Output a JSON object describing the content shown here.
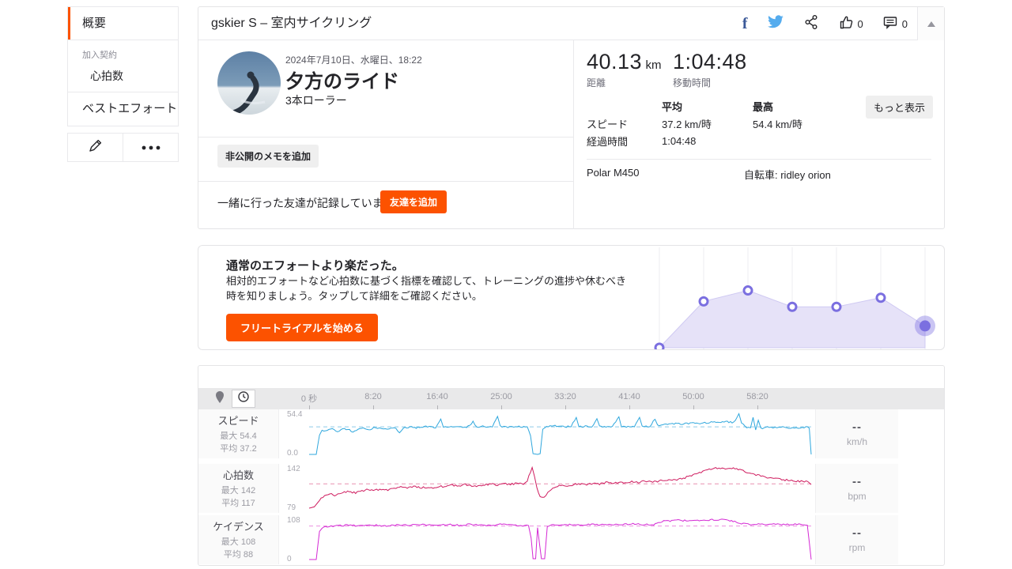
{
  "sidebar": {
    "overview": "概要",
    "subscription_label": "加入契約",
    "subscription_item": "心拍数",
    "best_efforts": "ベストエフォート"
  },
  "header": {
    "title": "gskier S – 室内サイクリング",
    "kudos_count": "0",
    "comments_count": "0"
  },
  "activity": {
    "date": "2024年7月10日、水曜日、18:22",
    "title": "夕方のライド",
    "subtitle": "3本ローラー",
    "private_note_button": "非公開のメモを追加",
    "friend_prompt": "一緒に行った友達が記録していませんか？",
    "add_friend_button": "友達を追加"
  },
  "stats": {
    "distance_value": "40.13",
    "distance_unit": "km",
    "distance_label": "距離",
    "moving_time_value": "1:04:48",
    "moving_time_label": "移動時間",
    "col_avg": "平均",
    "col_max": "最高",
    "row_speed_label": "スピード",
    "row_speed_avg": "37.2 km/時",
    "row_speed_max": "54.4 km/時",
    "row_elapsed_label": "経過時間",
    "row_elapsed_avg": "1:04:48",
    "more_button": "もっと表示",
    "device": "Polar M450",
    "bike": "自転車: ridley orion"
  },
  "promo": {
    "heading": "通常のエフォートより楽だった。",
    "body": "相対的エフォートなど心拍数に基づく指標を確認して、トレーニングの進捗や休むべき時を知りましょう。タップして詳細をご確認ください。",
    "cta": "フリートライアルを始める"
  },
  "charts": {
    "x_ticks": [
      "0 秒",
      "8:20",
      "16:40",
      "25:00",
      "33:20",
      "41:40",
      "50:00",
      "58:20"
    ],
    "rows": [
      {
        "name": "スピード",
        "max_label": "最大 54.4",
        "avg_label": "平均 37.2",
        "y_top": "54.4",
        "y_bottom": "0.0",
        "value": "--",
        "unit": "km/h"
      },
      {
        "name": "心拍数",
        "max_label": "最大 142",
        "avg_label": "平均 117",
        "y_top": "142",
        "y_bottom": "79",
        "value": "--",
        "unit": "bpm"
      },
      {
        "name": "ケイデンス",
        "max_label": "最大 108",
        "avg_label": "平均 88",
        "y_top": "108",
        "y_bottom": "0",
        "value": "--",
        "unit": "rpm"
      }
    ]
  },
  "colors": {
    "accent": "#fc5200",
    "facebook": "#3b5998",
    "twitter": "#55acee",
    "speed": "#2fa7dd",
    "speed_avg": "#8fcbe8",
    "heart_rate": "#cf1c5f",
    "heart_rate_avg": "#e790b0",
    "cadence": "#d428d4",
    "cadence_avg": "#eb8fe0",
    "promo_line": "#7b6fe0",
    "promo_fill": "#e6e2f8"
  },
  "chart_data": [
    {
      "type": "line",
      "series": "speed",
      "unit": "km/h",
      "ylim": [
        0,
        54.4
      ],
      "avg": 37.2,
      "x_range_seconds": [
        0,
        3890
      ],
      "points": [
        [
          0,
          0
        ],
        [
          55,
          0
        ],
        [
          80,
          26
        ],
        [
          100,
          32
        ],
        [
          140,
          33
        ],
        [
          180,
          34
        ],
        [
          220,
          31
        ],
        [
          260,
          35
        ],
        [
          300,
          34
        ],
        [
          340,
          30
        ],
        [
          380,
          35
        ],
        [
          420,
          36
        ],
        [
          460,
          33
        ],
        [
          500,
          36
        ],
        [
          560,
          35
        ],
        [
          620,
          34
        ],
        [
          660,
          37
        ],
        [
          700,
          30
        ],
        [
          730,
          36
        ],
        [
          780,
          37
        ],
        [
          830,
          36
        ],
        [
          880,
          37
        ],
        [
          930,
          38
        ],
        [
          980,
          36
        ],
        [
          1020,
          48
        ],
        [
          1040,
          37
        ],
        [
          1100,
          38
        ],
        [
          1160,
          37
        ],
        [
          1220,
          36
        ],
        [
          1270,
          44
        ],
        [
          1300,
          37
        ],
        [
          1360,
          38
        ],
        [
          1420,
          37
        ],
        [
          1460,
          52
        ],
        [
          1480,
          38
        ],
        [
          1540,
          37
        ],
        [
          1600,
          38
        ],
        [
          1650,
          37
        ],
        [
          1690,
          38
        ],
        [
          1715,
          25
        ],
        [
          1735,
          1
        ],
        [
          1770,
          0
        ],
        [
          1790,
          1
        ],
        [
          1810,
          34
        ],
        [
          1840,
          37
        ],
        [
          1880,
          39
        ],
        [
          1930,
          38
        ],
        [
          1980,
          37
        ],
        [
          2030,
          38
        ],
        [
          2070,
          50
        ],
        [
          2090,
          37
        ],
        [
          2140,
          38
        ],
        [
          2190,
          37
        ],
        [
          2230,
          49
        ],
        [
          2250,
          38
        ],
        [
          2300,
          37
        ],
        [
          2350,
          38
        ],
        [
          2400,
          51
        ],
        [
          2420,
          38
        ],
        [
          2470,
          37
        ],
        [
          2520,
          38
        ],
        [
          2560,
          49
        ],
        [
          2580,
          38
        ],
        [
          2640,
          37
        ],
        [
          2680,
          48
        ],
        [
          2700,
          39
        ],
        [
          2740,
          40
        ],
        [
          2790,
          41
        ],
        [
          2840,
          42
        ],
        [
          2890,
          41
        ],
        [
          2940,
          42
        ],
        [
          2990,
          43
        ],
        [
          3040,
          42
        ],
        [
          3090,
          43
        ],
        [
          3140,
          44
        ],
        [
          3190,
          43
        ],
        [
          3240,
          44
        ],
        [
          3290,
          43
        ],
        [
          3330,
          54
        ],
        [
          3350,
          42
        ],
        [
          3390,
          37
        ],
        [
          3420,
          35
        ],
        [
          3440,
          49
        ],
        [
          3460,
          33
        ],
        [
          3480,
          46
        ],
        [
          3500,
          35
        ],
        [
          3550,
          37
        ],
        [
          3610,
          36
        ],
        [
          3670,
          37
        ],
        [
          3730,
          36
        ],
        [
          3790,
          36
        ],
        [
          3850,
          37
        ],
        [
          3875,
          36
        ],
        [
          3890,
          0
        ]
      ]
    },
    {
      "type": "line",
      "series": "heart_rate",
      "unit": "bpm",
      "ylim": [
        79,
        142
      ],
      "avg": 117,
      "x_range_seconds": [
        0,
        3890
      ],
      "points": [
        [
          0,
          79
        ],
        [
          40,
          81
        ],
        [
          80,
          91
        ],
        [
          120,
          100
        ],
        [
          160,
          101
        ],
        [
          210,
          99
        ],
        [
          260,
          103
        ],
        [
          310,
          105
        ],
        [
          360,
          103
        ],
        [
          410,
          106
        ],
        [
          460,
          108
        ],
        [
          510,
          107
        ],
        [
          560,
          109
        ],
        [
          610,
          108
        ],
        [
          660,
          110
        ],
        [
          710,
          112
        ],
        [
          760,
          110
        ],
        [
          810,
          113
        ],
        [
          860,
          111
        ],
        [
          910,
          112
        ],
        [
          960,
          110
        ],
        [
          1010,
          113
        ],
        [
          1060,
          112
        ],
        [
          1110,
          115
        ],
        [
          1160,
          113
        ],
        [
          1210,
          116
        ],
        [
          1260,
          114
        ],
        [
          1310,
          113
        ],
        [
          1360,
          115
        ],
        [
          1410,
          117
        ],
        [
          1460,
          115
        ],
        [
          1510,
          117
        ],
        [
          1560,
          116
        ],
        [
          1610,
          118
        ],
        [
          1660,
          117
        ],
        [
          1690,
          121
        ],
        [
          1715,
          136
        ],
        [
          1728,
          142
        ],
        [
          1745,
          128
        ],
        [
          1765,
          110
        ],
        [
          1790,
          98
        ],
        [
          1820,
          96
        ],
        [
          1850,
          103
        ],
        [
          1900,
          112
        ],
        [
          1950,
          115
        ],
        [
          2000,
          113
        ],
        [
          2050,
          116
        ],
        [
          2100,
          117
        ],
        [
          2150,
          115
        ],
        [
          2200,
          118
        ],
        [
          2250,
          117
        ],
        [
          2300,
          119
        ],
        [
          2350,
          117
        ],
        [
          2400,
          120
        ],
        [
          2450,
          118
        ],
        [
          2500,
          121
        ],
        [
          2550,
          119
        ],
        [
          2600,
          122
        ],
        [
          2650,
          120
        ],
        [
          2700,
          121
        ],
        [
          2750,
          123
        ],
        [
          2800,
          122
        ],
        [
          2850,
          124
        ],
        [
          2900,
          126
        ],
        [
          2950,
          129
        ],
        [
          3000,
          133
        ],
        [
          3050,
          136
        ],
        [
          3100,
          139
        ],
        [
          3150,
          141
        ],
        [
          3200,
          142
        ],
        [
          3250,
          140
        ],
        [
          3300,
          141
        ],
        [
          3350,
          138
        ],
        [
          3400,
          135
        ],
        [
          3450,
          132
        ],
        [
          3500,
          129
        ],
        [
          3550,
          127
        ],
        [
          3600,
          126
        ],
        [
          3650,
          124
        ],
        [
          3700,
          123
        ],
        [
          3750,
          122
        ],
        [
          3800,
          121
        ],
        [
          3850,
          121
        ],
        [
          3890,
          117
        ]
      ]
    },
    {
      "type": "line",
      "series": "cadence",
      "unit": "rpm",
      "ylim": [
        0,
        108
      ],
      "avg": 88,
      "x_range_seconds": [
        0,
        3890
      ],
      "points": [
        [
          0,
          0
        ],
        [
          55,
          0
        ],
        [
          80,
          74
        ],
        [
          100,
          84
        ],
        [
          140,
          87
        ],
        [
          200,
          88
        ],
        [
          280,
          90
        ],
        [
          360,
          89
        ],
        [
          440,
          91
        ],
        [
          520,
          90
        ],
        [
          600,
          89
        ],
        [
          680,
          91
        ],
        [
          760,
          90
        ],
        [
          840,
          92
        ],
        [
          920,
          90
        ],
        [
          1000,
          91
        ],
        [
          1080,
          92
        ],
        [
          1160,
          90
        ],
        [
          1240,
          92
        ],
        [
          1320,
          91
        ],
        [
          1400,
          90
        ],
        [
          1480,
          92
        ],
        [
          1560,
          91
        ],
        [
          1640,
          90
        ],
        [
          1700,
          89
        ],
        [
          1720,
          55
        ],
        [
          1735,
          2
        ],
        [
          1755,
          2
        ],
        [
          1770,
          84
        ],
        [
          1785,
          40
        ],
        [
          1800,
          2
        ],
        [
          1825,
          2
        ],
        [
          1845,
          86
        ],
        [
          1880,
          90
        ],
        [
          1930,
          91
        ],
        [
          1980,
          90
        ],
        [
          2030,
          92
        ],
        [
          2110,
          91
        ],
        [
          2190,
          92
        ],
        [
          2270,
          91
        ],
        [
          2350,
          93
        ],
        [
          2430,
          92
        ],
        [
          2510,
          93
        ],
        [
          2590,
          92
        ],
        [
          2670,
          92
        ],
        [
          2720,
          99
        ],
        [
          2760,
          102
        ],
        [
          2810,
          101
        ],
        [
          2860,
          103
        ],
        [
          2910,
          102
        ],
        [
          2960,
          104
        ],
        [
          3010,
          103
        ],
        [
          3060,
          105
        ],
        [
          3110,
          104
        ],
        [
          3160,
          105
        ],
        [
          3210,
          104
        ],
        [
          3260,
          102
        ],
        [
          3310,
          99
        ],
        [
          3350,
          95
        ],
        [
          3400,
          93
        ],
        [
          3450,
          92
        ],
        [
          3510,
          93
        ],
        [
          3570,
          92
        ],
        [
          3630,
          93
        ],
        [
          3690,
          92
        ],
        [
          3750,
          93
        ],
        [
          3810,
          92
        ],
        [
          3860,
          91
        ],
        [
          3890,
          0
        ]
      ]
    },
    {
      "type": "area",
      "series": "relative_effort_trend",
      "ylim": [
        0,
        100
      ],
      "values": [
        0,
        51,
        63,
        45,
        45,
        55,
        24
      ]
    }
  ]
}
